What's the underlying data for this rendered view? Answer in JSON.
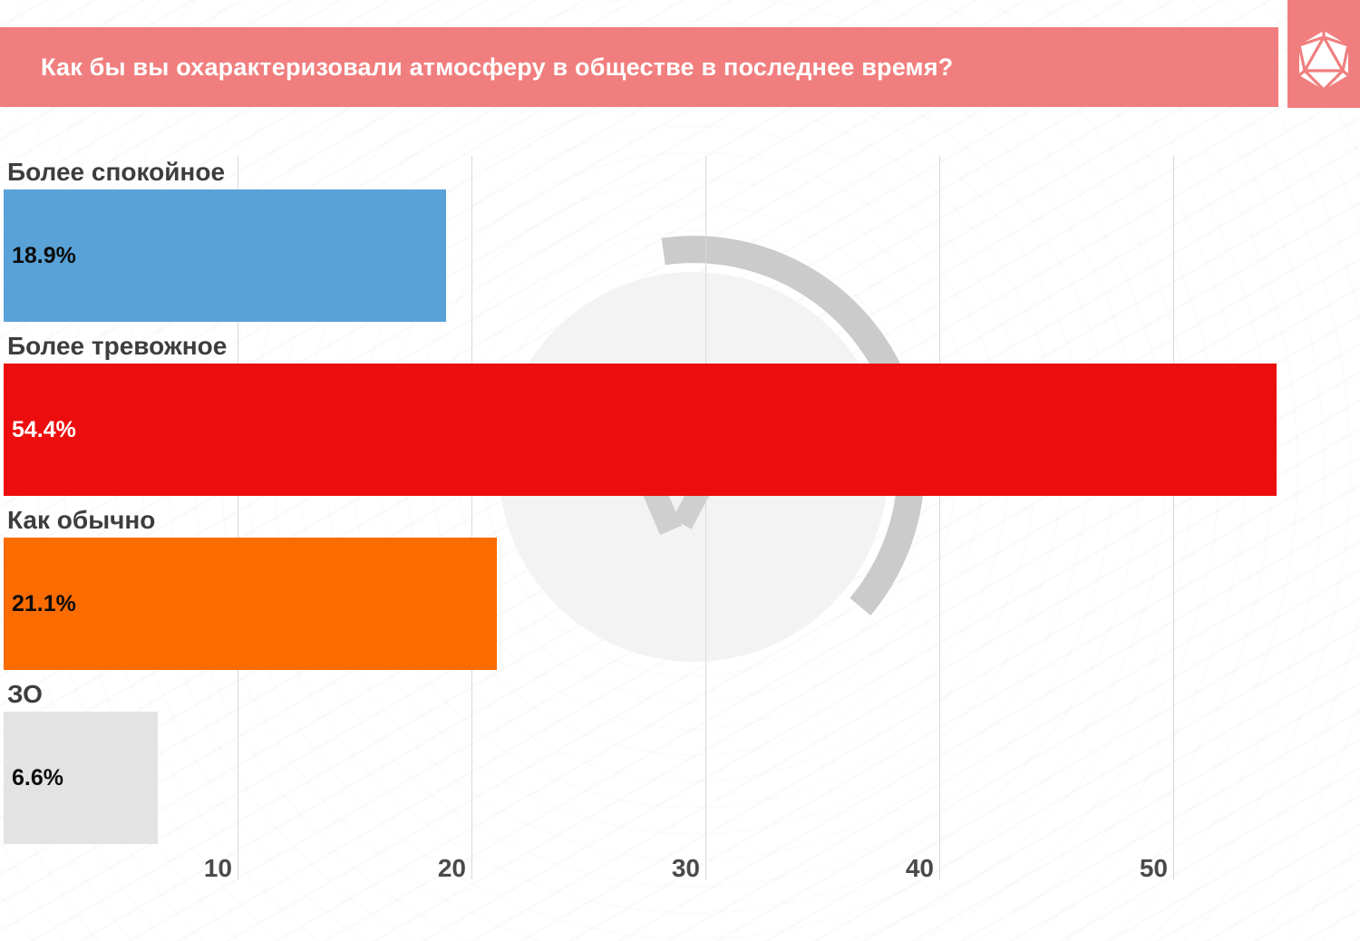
{
  "header": {
    "title": "Как бы вы охарактеризовали атмосферу в обществе в последнее время?",
    "bg_color": "#F17E7E"
  },
  "logo": {
    "icon": "d20-dice-icon",
    "bg_color": "#F17E7E",
    "fg_color": "#ffffff"
  },
  "chart_data": {
    "type": "bar",
    "orientation": "horizontal",
    "title": "Как бы вы охарактеризовали атмосферу в обществе в последнее время?",
    "categories": [
      "Более спокойное",
      "Более тревожное",
      "Как обычно",
      "ЗО"
    ],
    "values": [
      18.9,
      54.4,
      21.1,
      6.6
    ],
    "value_labels": [
      "18.9%",
      "54.4%",
      "21.1%",
      "6.6%"
    ],
    "bar_colors": [
      "#58A2D8",
      "#EC0E0E",
      "#FA6B00",
      "#E3E3E3"
    ],
    "value_label_colors": [
      "#0d0d0d",
      "#ffffff",
      "#0d0d0d",
      "#0d0d0d"
    ],
    "x_ticks": [
      10,
      20,
      30,
      40,
      50
    ],
    "xlim": [
      0,
      58
    ],
    "grid": "vertical-only",
    "legend": "none"
  },
  "watermark": {
    "circle_color": "#f3f3f3",
    "arc_color": "#cbcbcb",
    "emblem_color": "#cfcfcf"
  }
}
